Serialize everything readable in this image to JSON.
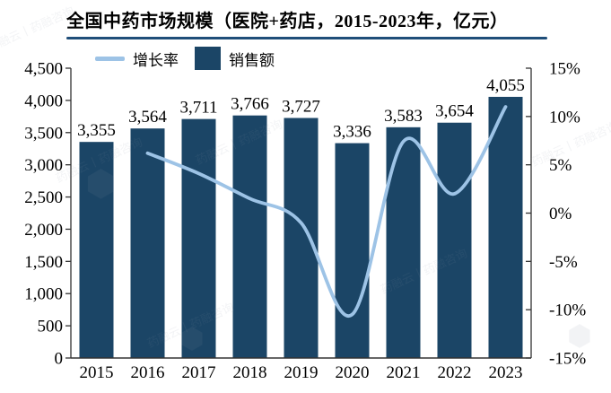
{
  "title": "全国中药市场规模（医院+药店，2015-2023年，亿元）",
  "legend": {
    "growth_label": "增长率",
    "sales_label": "销售额"
  },
  "colors": {
    "bar": "#1b4566",
    "line": "#9dc3e6",
    "title_underline": "#1f4e79",
    "axis": "#333333",
    "text": "#000000",
    "watermark": "#8a93a6"
  },
  "watermark": {
    "text": "药融云丨药融咨询",
    "logo_glyph": "⬢"
  },
  "chart_data": {
    "type": "bar+line",
    "title": "全国中药市场规模（医院+药店，2015-2023年，亿元）",
    "categories": [
      "2015",
      "2016",
      "2017",
      "2018",
      "2019",
      "2020",
      "2021",
      "2022",
      "2023"
    ],
    "series": [
      {
        "name": "销售额",
        "type": "bar",
        "axis": "left",
        "color": "#1b4566",
        "values": [
          3355,
          3564,
          3711,
          3766,
          3727,
          3336,
          3583,
          3654,
          4055
        ],
        "labels": [
          "3,355",
          "3,564",
          "3,711",
          "3,766",
          "3,727",
          "3,336",
          "3,583",
          "3,654",
          "4,055"
        ]
      },
      {
        "name": "增长率",
        "type": "line",
        "axis": "right",
        "color": "#9dc3e6",
        "values": [
          null,
          6.2,
          4.1,
          1.5,
          -1.0,
          -10.5,
          7.4,
          2.0,
          11.0
        ]
      }
    ],
    "left_axis": {
      "min": 0,
      "max": 4500,
      "step": 500,
      "labels_top_to_bottom": [
        "4,500",
        "4,000",
        "3,500",
        "3,000",
        "2,500",
        "2,000",
        "1,500",
        "1,000",
        "500",
        "0"
      ]
    },
    "right_axis": {
      "min": -15,
      "max": 15,
      "step": 5,
      "format": "percent",
      "labels_top_to_bottom": [
        "15%",
        "10%",
        "5%",
        "0%",
        "-5%",
        "-10%",
        "-15%"
      ]
    },
    "grid": false,
    "legend_position": "top-left"
  }
}
